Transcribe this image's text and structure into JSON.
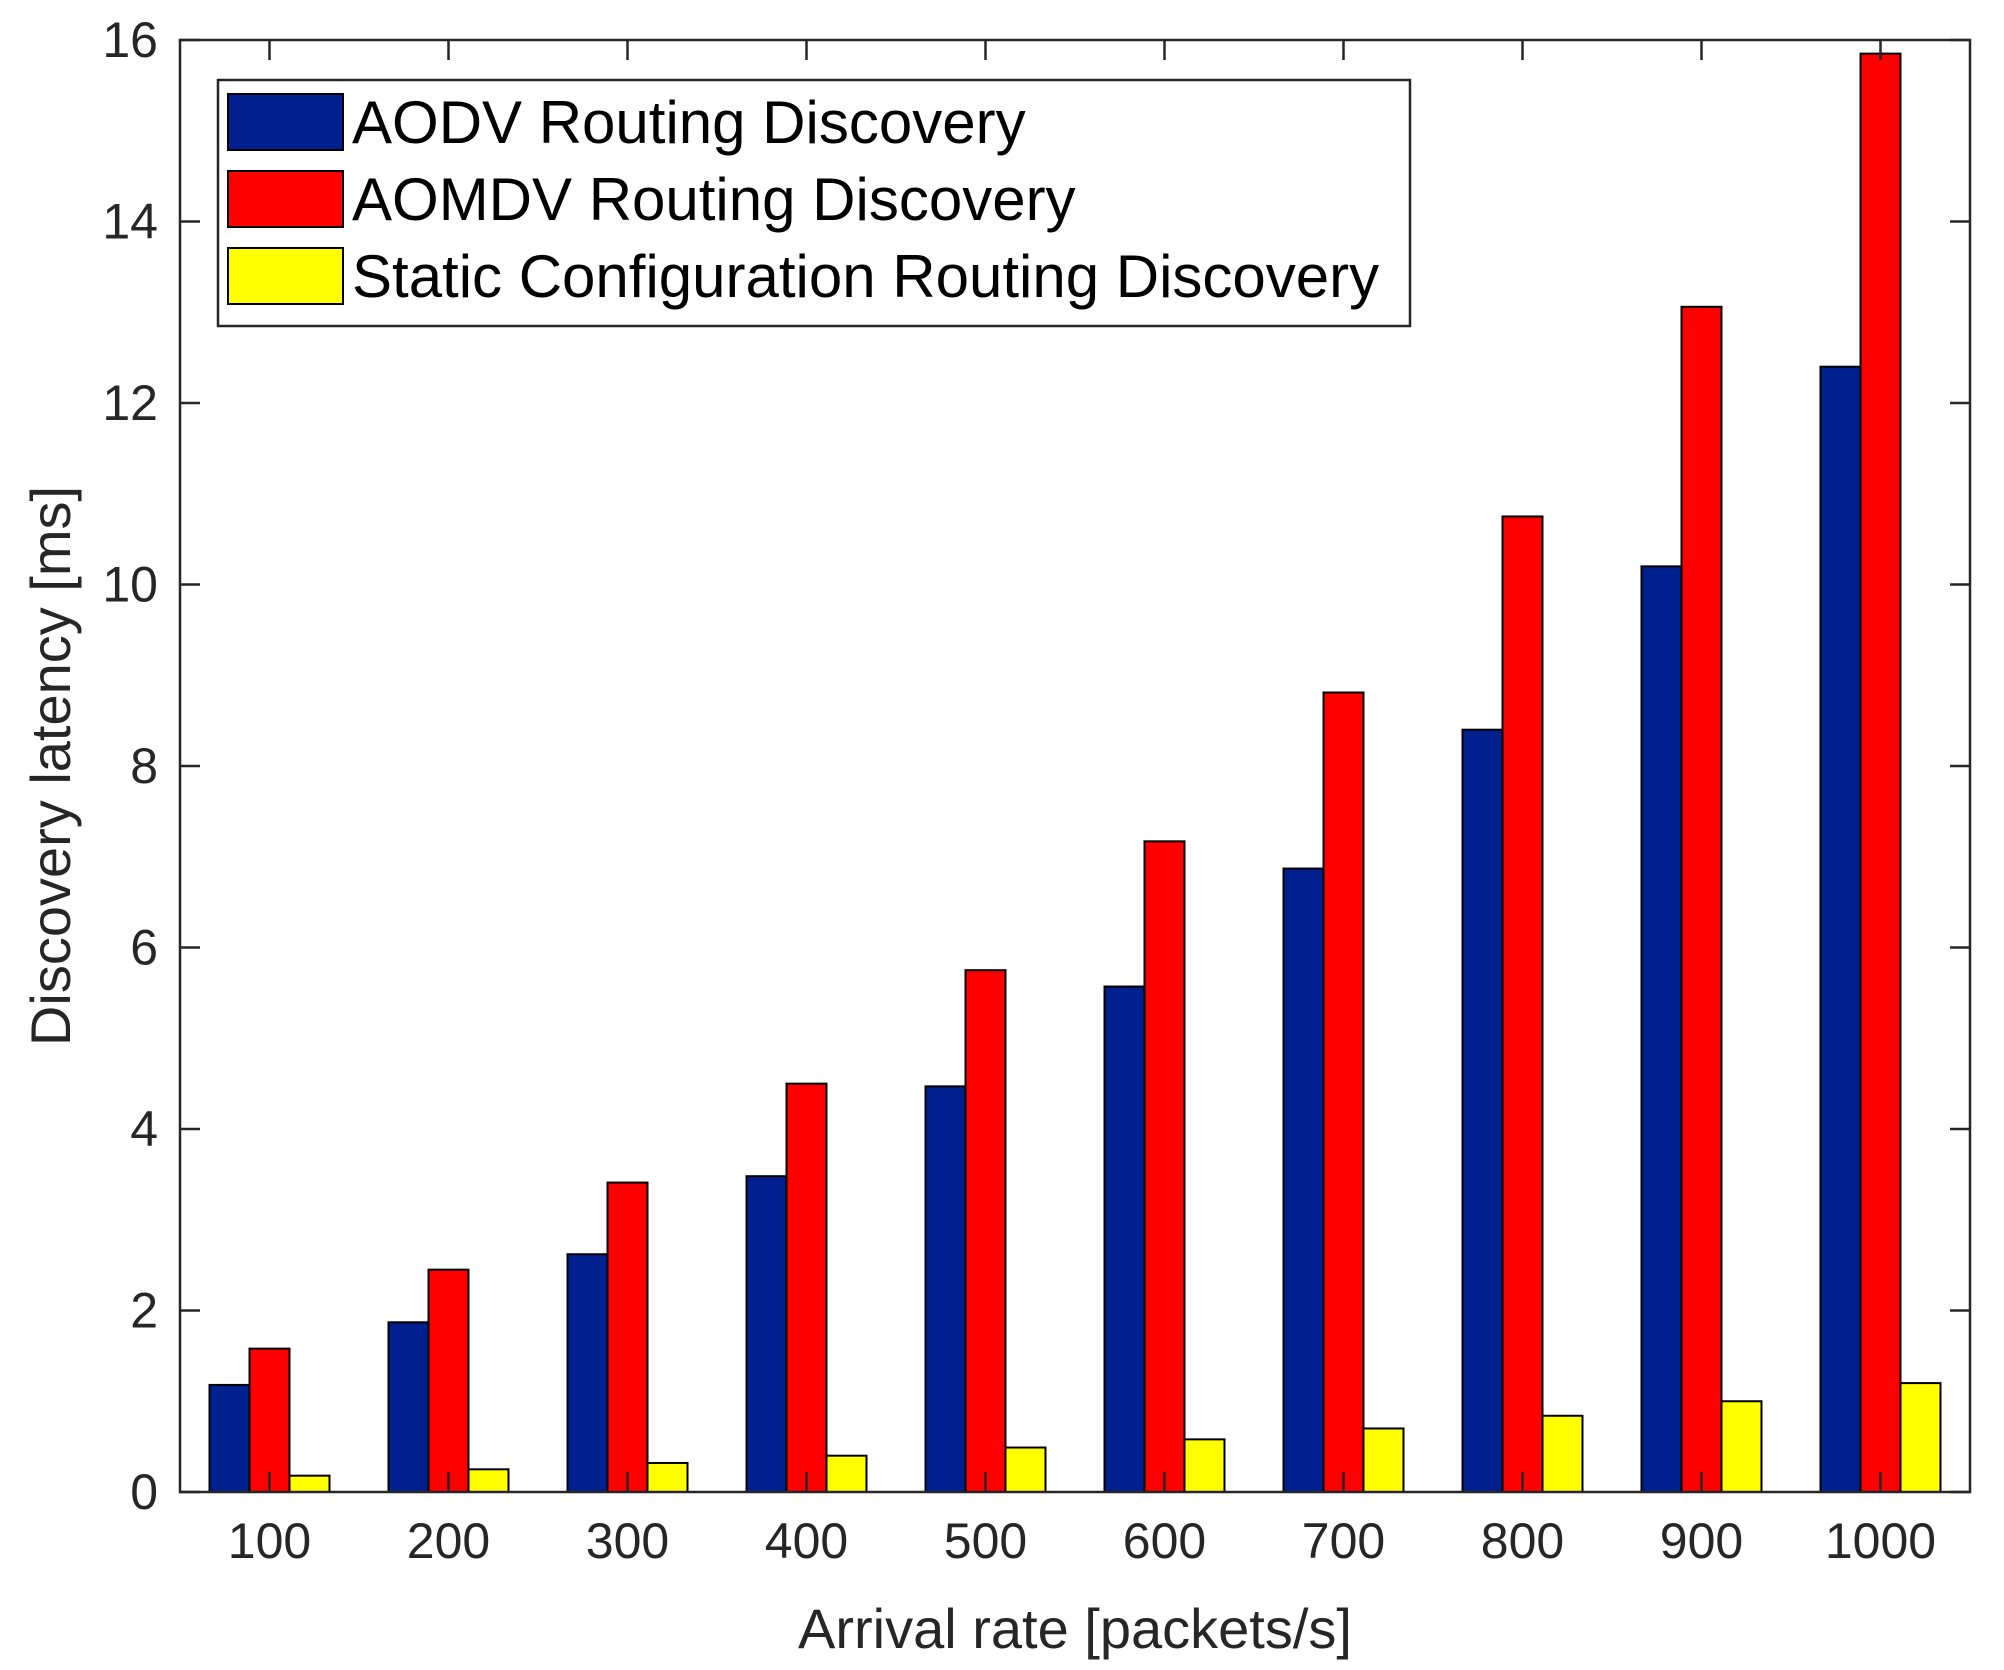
{
  "chart_data": {
    "type": "bar",
    "title": "",
    "xlabel": "Arrival rate [packets/s]",
    "ylabel": "Discovery latency [ms]",
    "categories": [
      "100",
      "200",
      "300",
      "400",
      "500",
      "600",
      "700",
      "800",
      "900",
      "1000"
    ],
    "ylim": [
      0,
      16
    ],
    "yticks": [
      "0",
      "2",
      "4",
      "6",
      "8",
      "10",
      "12",
      "14",
      "16"
    ],
    "grid": false,
    "legend_position": "top-left",
    "series": [
      {
        "name": "AODV Routing Discovery",
        "color": "#00208F",
        "values": [
          1.18,
          1.87,
          2.62,
          3.48,
          4.47,
          5.57,
          6.87,
          8.4,
          10.2,
          12.4
        ]
      },
      {
        "name": "AOMDV Routing Discovery",
        "color": "#FF0000",
        "values": [
          1.58,
          2.45,
          3.41,
          4.5,
          5.75,
          7.17,
          8.81,
          10.75,
          13.06,
          15.85
        ]
      },
      {
        "name": "Static Configuration Routing Discovery",
        "color": "#FFFF00",
        "values": [
          0.18,
          0.25,
          0.32,
          0.4,
          0.49,
          0.58,
          0.7,
          0.84,
          1.0,
          1.2
        ]
      }
    ]
  }
}
